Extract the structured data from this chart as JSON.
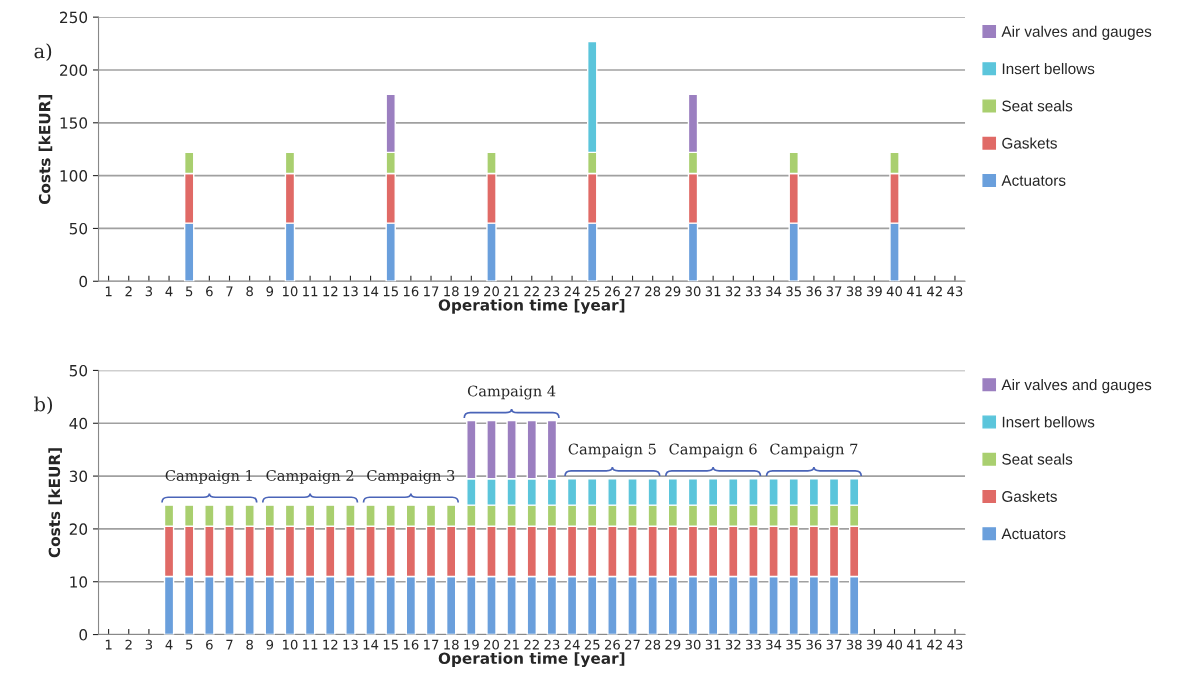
{
  "chart_data": [
    {
      "type": "bar",
      "stacked": true,
      "xlabel": "Operation time [year]",
      "ylabel": "Costs [kEUR]",
      "categories": [
        "1",
        "2",
        "3",
        "4",
        "5",
        "6",
        "7",
        "8",
        "9",
        "10",
        "11",
        "12",
        "13",
        "14",
        "15",
        "16",
        "17",
        "18",
        "19",
        "20",
        "21",
        "22",
        "23",
        "24",
        "25",
        "26",
        "27",
        "28",
        "29",
        "30",
        "31",
        "32",
        "33",
        "34",
        "35",
        "36",
        "37",
        "38",
        "39",
        "40",
        "41",
        "42",
        "43"
      ],
      "series": [
        {
          "name": "Actuators",
          "color": "#6a9fdc",
          "values": [
            null,
            null,
            null,
            null,
            55,
            null,
            null,
            null,
            null,
            55,
            null,
            null,
            null,
            null,
            55,
            null,
            null,
            null,
            null,
            55,
            null,
            null,
            null,
            null,
            55,
            null,
            null,
            null,
            null,
            55,
            null,
            null,
            null,
            null,
            55,
            null,
            null,
            null,
            null,
            55,
            null,
            null,
            null
          ]
        },
        {
          "name": "Gaskets",
          "color": "#e06a66",
          "values": [
            null,
            null,
            null,
            null,
            47,
            null,
            null,
            null,
            null,
            47,
            null,
            null,
            null,
            null,
            47,
            null,
            null,
            null,
            null,
            47,
            null,
            null,
            null,
            null,
            47,
            null,
            null,
            null,
            null,
            47,
            null,
            null,
            null,
            null,
            47,
            null,
            null,
            null,
            null,
            47,
            null,
            null,
            null
          ]
        },
        {
          "name": "Seat seals",
          "color": "#a9cf6f",
          "values": [
            null,
            null,
            null,
            null,
            20,
            null,
            null,
            null,
            null,
            20,
            null,
            null,
            null,
            null,
            20,
            null,
            null,
            null,
            null,
            20,
            null,
            null,
            null,
            null,
            20,
            null,
            null,
            null,
            null,
            20,
            null,
            null,
            null,
            null,
            20,
            null,
            null,
            null,
            null,
            20,
            null,
            null,
            null
          ]
        },
        {
          "name": "Insert bellows",
          "color": "#5bc5db",
          "values": [
            null,
            null,
            null,
            null,
            null,
            null,
            null,
            null,
            null,
            null,
            null,
            null,
            null,
            null,
            null,
            null,
            null,
            null,
            null,
            null,
            null,
            null,
            null,
            null,
            105,
            null,
            null,
            null,
            null,
            null,
            null,
            null,
            null,
            null,
            null,
            null,
            null,
            null,
            null,
            null,
            null,
            null,
            null
          ]
        },
        {
          "name": "Air valves and gauges",
          "color": "#9b7fc0",
          "values": [
            null,
            null,
            null,
            null,
            null,
            null,
            null,
            null,
            null,
            null,
            null,
            null,
            null,
            null,
            55,
            null,
            null,
            null,
            null,
            null,
            null,
            null,
            null,
            null,
            null,
            null,
            null,
            null,
            null,
            55,
            null,
            null,
            null,
            null,
            null,
            null,
            null,
            null,
            null,
            null,
            null,
            null,
            null
          ]
        }
      ],
      "ylim": [
        0,
        250
      ],
      "yticks": [
        0,
        50,
        100,
        150,
        200,
        250
      ],
      "grid": "y",
      "legend": "right",
      "annotations": [
        "a)"
      ]
    },
    {
      "type": "bar",
      "stacked": true,
      "xlabel": "Operation time [year]",
      "ylabel": "Costs [kEUR]",
      "categories": [
        "1",
        "2",
        "3",
        "4",
        "5",
        "6",
        "7",
        "8",
        "9",
        "10",
        "11",
        "12",
        "13",
        "14",
        "15",
        "16",
        "17",
        "18",
        "19",
        "20",
        "21",
        "22",
        "23",
        "24",
        "25",
        "26",
        "27",
        "28",
        "29",
        "30",
        "31",
        "32",
        "33",
        "34",
        "35",
        "36",
        "37",
        "38",
        "39",
        "40",
        "41",
        "42",
        "43"
      ],
      "series": [
        {
          "name": "Actuators",
          "color": "#6a9fdc",
          "values": [
            null,
            null,
            null,
            11,
            11,
            11,
            11,
            11,
            11,
            11,
            11,
            11,
            11,
            11,
            11,
            11,
            11,
            11,
            11,
            11,
            11,
            11,
            11,
            11,
            11,
            11,
            11,
            11,
            11,
            11,
            11,
            11,
            11,
            11,
            11,
            11,
            11,
            11,
            null,
            null,
            null,
            null,
            null
          ]
        },
        {
          "name": "Gaskets",
          "color": "#e06a66",
          "values": [
            null,
            null,
            null,
            9.5,
            9.5,
            9.5,
            9.5,
            9.5,
            9.5,
            9.5,
            9.5,
            9.5,
            9.5,
            9.5,
            9.5,
            9.5,
            9.5,
            9.5,
            9.5,
            9.5,
            9.5,
            9.5,
            9.5,
            9.5,
            9.5,
            9.5,
            9.5,
            9.5,
            9.5,
            9.5,
            9.5,
            9.5,
            9.5,
            9.5,
            9.5,
            9.5,
            9.5,
            9.5,
            null,
            null,
            null,
            null,
            null
          ]
        },
        {
          "name": "Seat seals",
          "color": "#a9cf6f",
          "values": [
            null,
            null,
            null,
            4,
            4,
            4,
            4,
            4,
            4,
            4,
            4,
            4,
            4,
            4,
            4,
            4,
            4,
            4,
            4,
            4,
            4,
            4,
            4,
            4,
            4,
            4,
            4,
            4,
            4,
            4,
            4,
            4,
            4,
            4,
            4,
            4,
            4,
            4,
            null,
            null,
            null,
            null,
            null
          ]
        },
        {
          "name": "Insert bellows",
          "color": "#5bc5db",
          "values": [
            null,
            null,
            null,
            null,
            null,
            null,
            null,
            null,
            null,
            null,
            null,
            null,
            null,
            null,
            null,
            null,
            null,
            null,
            5,
            5,
            5,
            5,
            5,
            5,
            5,
            5,
            5,
            5,
            5,
            5,
            5,
            5,
            5,
            5,
            5,
            5,
            5,
            5,
            null,
            null,
            null,
            null,
            null
          ]
        },
        {
          "name": "Air valves and gauges",
          "color": "#9b7fc0",
          "values": [
            null,
            null,
            null,
            null,
            null,
            null,
            null,
            null,
            null,
            null,
            null,
            null,
            null,
            null,
            null,
            null,
            null,
            null,
            11,
            11,
            11,
            11,
            11,
            null,
            null,
            null,
            null,
            null,
            null,
            null,
            null,
            null,
            null,
            null,
            null,
            null,
            null,
            null,
            null,
            null,
            null,
            null,
            null
          ]
        }
      ],
      "ylim": [
        0,
        50
      ],
      "yticks": [
        0,
        10,
        20,
        30,
        40,
        50
      ],
      "grid": "y",
      "legend": "right",
      "annotations": [
        "b)",
        "Campaign 1",
        "Campaign 2",
        "Campaign 3",
        "Campaign 4",
        "Campaign 5",
        "Campaign 6",
        "Campaign 7"
      ]
    }
  ]
}
